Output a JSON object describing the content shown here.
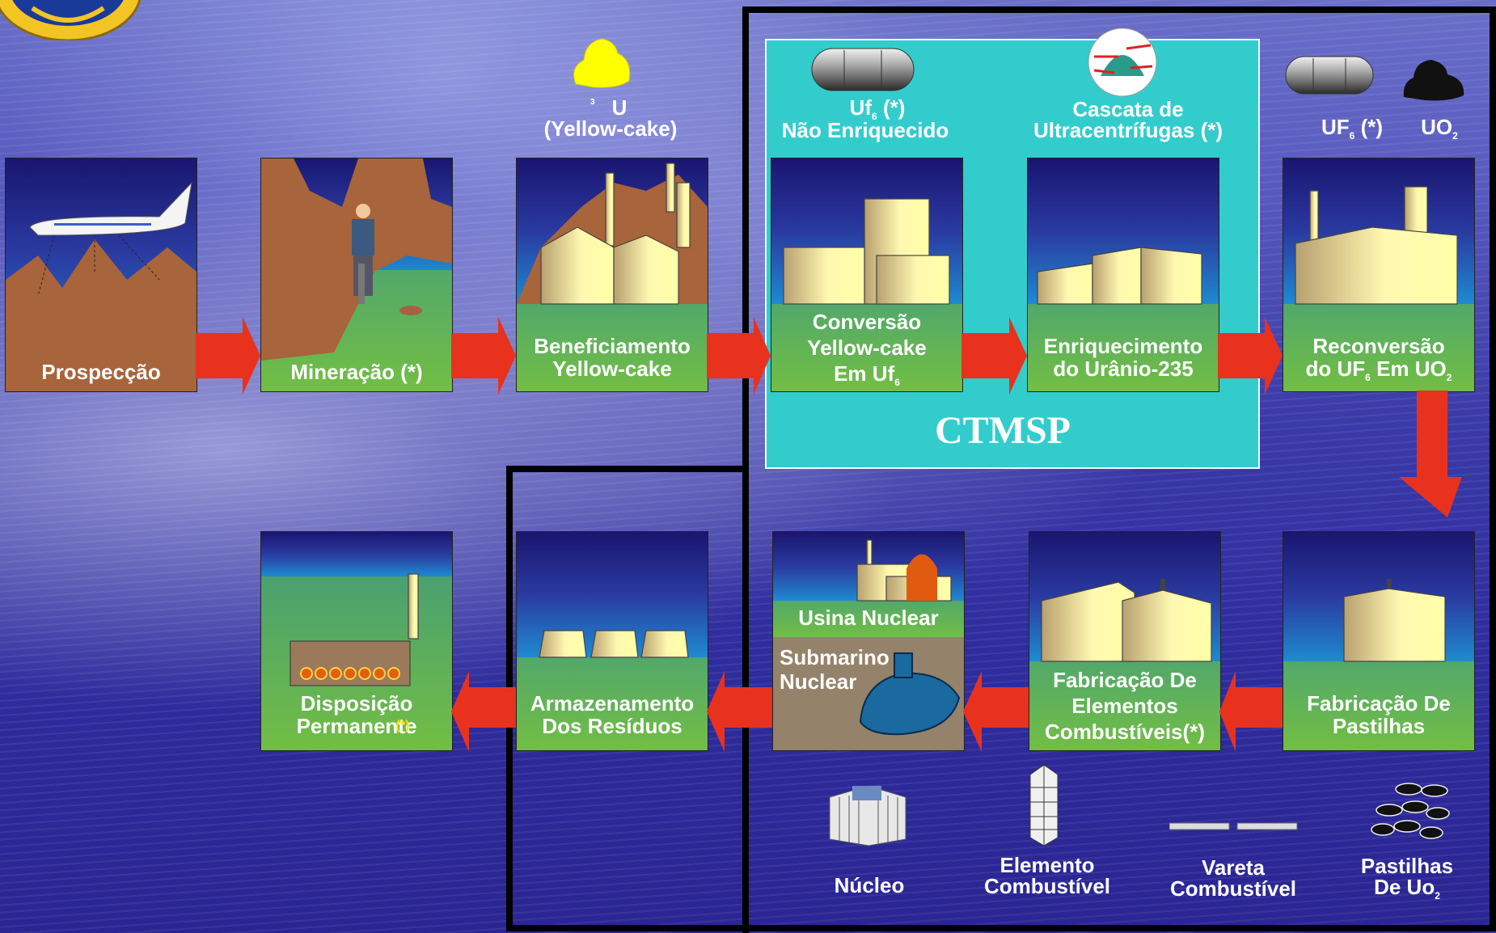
{
  "steps": {
    "prospeccao": "Prospecção",
    "mineracao": "Mineração (*)",
    "beneficiamento_1": "Beneficiamento",
    "beneficiamento_2": "Yellow-cake",
    "conversao_1": "Conversão",
    "conversao_2": "Yellow-cake",
    "conversao_3": "Em Uf",
    "conversao_sub": "6",
    "enriquecimento_1": "Enriquecimento",
    "enriquecimento_2": "do Urânio-235",
    "reconversao_1": "Reconversão",
    "reconversao_2a": "do UF",
    "reconversao_2sub": "6",
    "reconversao_2b": " Em UO",
    "reconversao_2sub2": "2",
    "pastilhas_1": "Fabricação De",
    "pastilhas_2": "Pastilhas",
    "elementos_1": "Fabricação De",
    "elementos_2": "Elementos",
    "elementos_3": "Combustíveis",
    "elementos_star": "(*)",
    "usina": "Usina Nuclear",
    "submarino_1": "Submarino",
    "submarino_2": "Nuclear",
    "armazenamento_1": "Armazenamento",
    "armazenamento_2": "Dos Resíduos",
    "disposicao_1": "Disposição",
    "disposicao_2": "Permanente",
    "disposicao_star": "(*)"
  },
  "captions": {
    "u": "U",
    "u_sub": "3",
    "yellowcake": "(Yellow-cake)",
    "uf_a": "Uf",
    "uf_sub": "6",
    "uf_b": " (*)",
    "nao_enriquecido": "Não Enriquecido",
    "cascata_1": "Cascata de",
    "cascata_2": "Ultracentrífugas (*)",
    "uf6_a": "UF",
    "uf6_sub": "6",
    "uf6_b": " (*)",
    "uo2_a": "UO",
    "uo2_sub": "2",
    "nucleo": "Núcleo",
    "elemento_1": "Elemento",
    "elemento_2": "Combustível",
    "vareta_1": "Vareta",
    "vareta_2": "Combustível",
    "pastilhas_1": "Pastilhas",
    "pastilhas_2a": "De Uo",
    "pastilhas_2sub": "2"
  },
  "ctmsp": "CTMSP",
  "colors": {
    "arrow": "#e8321e",
    "ctmsp_panel": "#33cccc",
    "yellowcake": "#ffff00"
  }
}
